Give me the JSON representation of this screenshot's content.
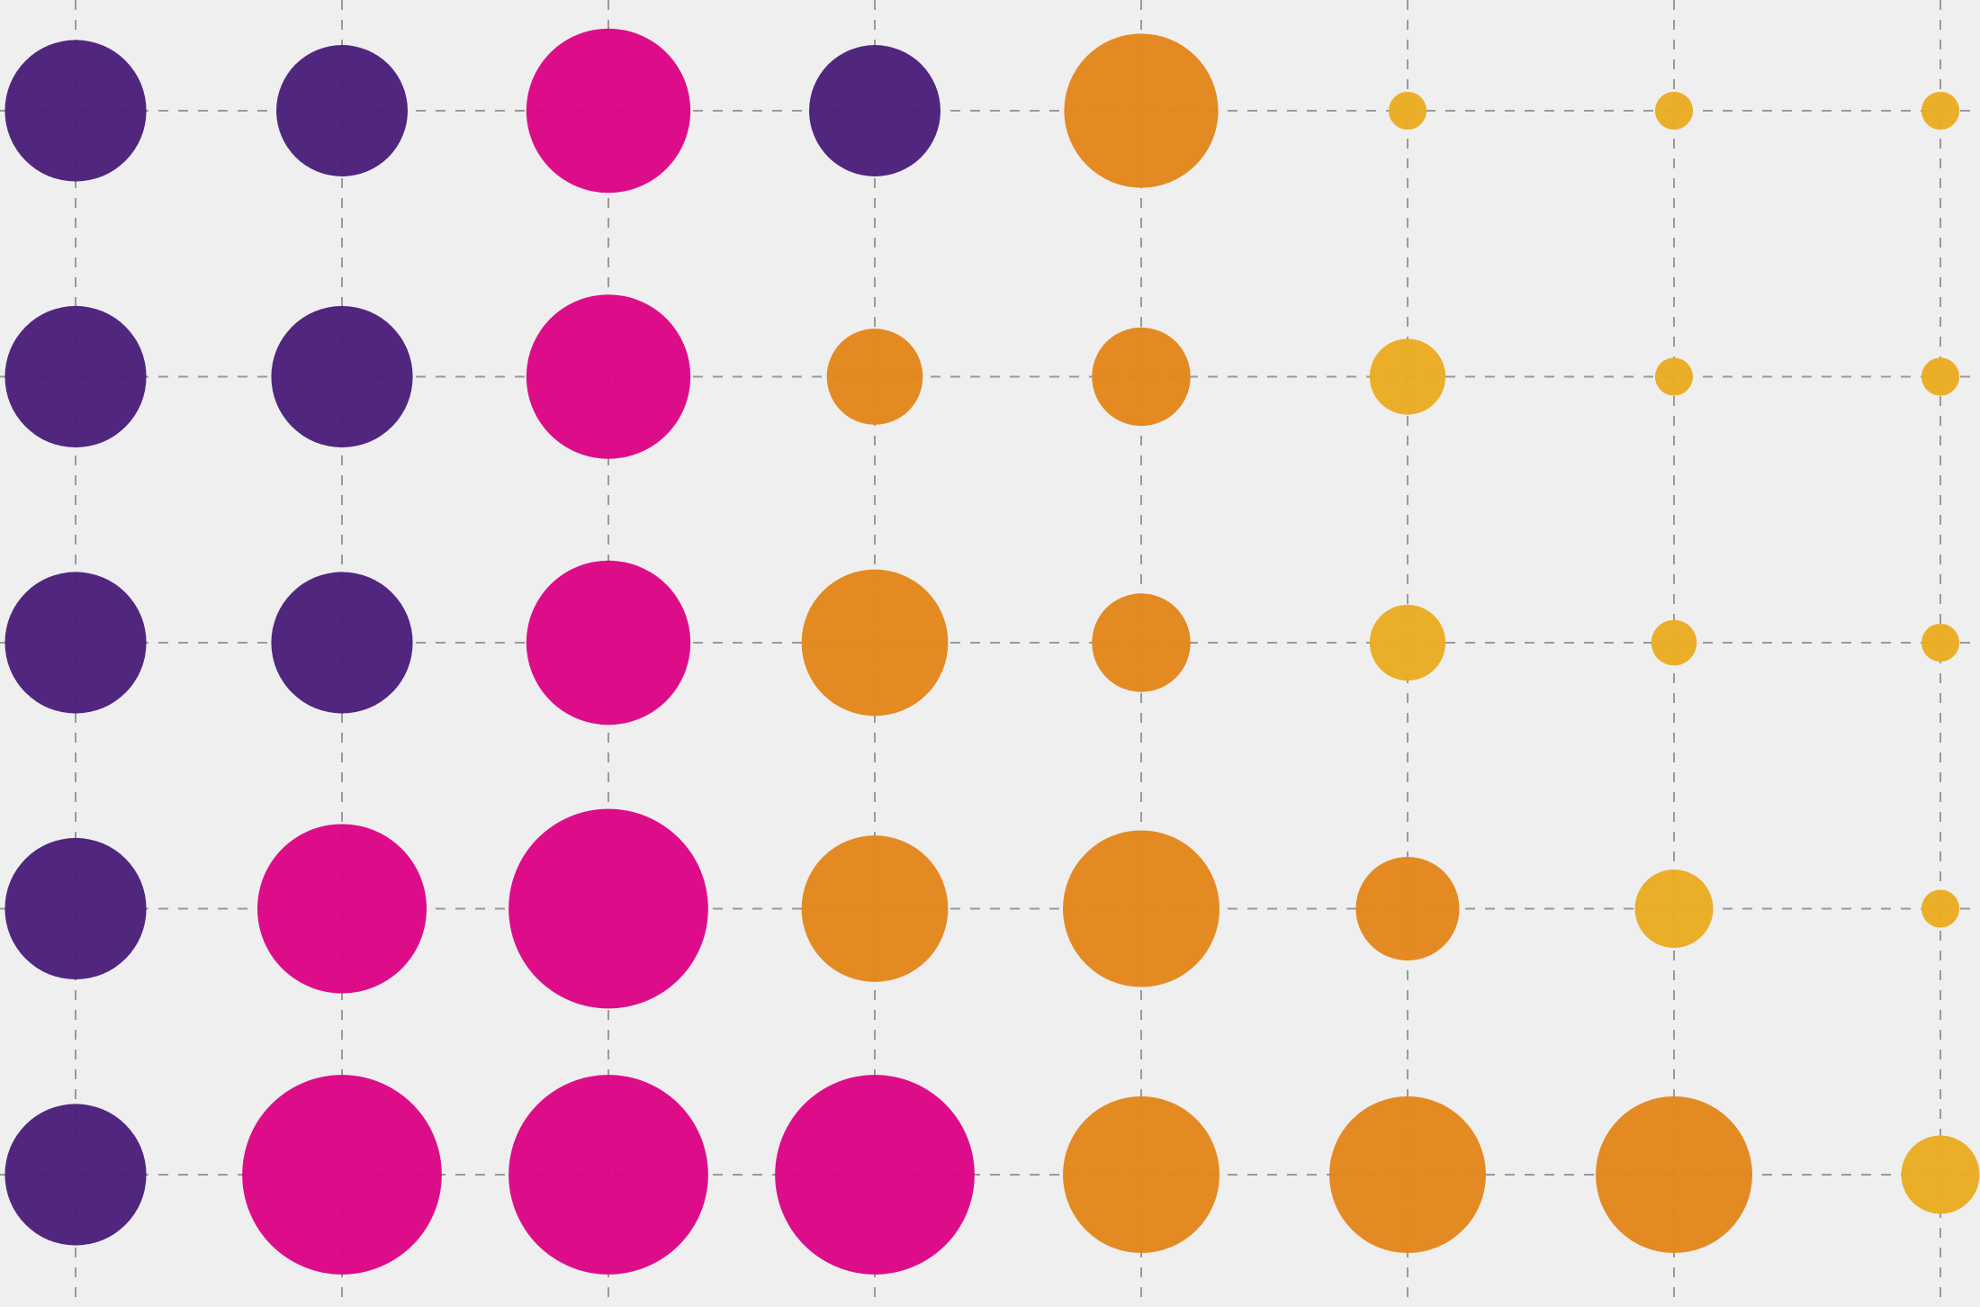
{
  "chart_data": {
    "type": "bubble",
    "grid": true,
    "rows": [
      {
        "sizes": [
          112,
          104,
          130,
          104,
          122,
          30,
          30,
          30
        ],
        "colors": [
          "#4a1f7a",
          "#4a1f7a",
          "#dc0585",
          "#4a1f7a",
          "#e3861c",
          "#e9ab22",
          "#e9ab22",
          "#e9ab22"
        ]
      },
      {
        "sizes": [
          112,
          112,
          130,
          76,
          78,
          60,
          30,
          30
        ],
        "colors": [
          "#4a1f7a",
          "#4a1f7a",
          "#dc0585",
          "#e3861c",
          "#e3861c",
          "#e9ab22",
          "#e9ab22",
          "#e9ab22"
        ]
      },
      {
        "sizes": [
          112,
          112,
          130,
          116,
          78,
          60,
          36,
          30
        ],
        "colors": [
          "#4a1f7a",
          "#4a1f7a",
          "#dc0585",
          "#e3861c",
          "#e3861c",
          "#e9ab22",
          "#e9ab22",
          "#e9ab22"
        ]
      },
      {
        "sizes": [
          112,
          134,
          158,
          116,
          124,
          82,
          62,
          30
        ],
        "colors": [
          "#4a1f7a",
          "#dc0585",
          "#dc0585",
          "#e3861c",
          "#e3861c",
          "#e3861c",
          "#e9ab22",
          "#e9ab22"
        ]
      },
      {
        "sizes": [
          112,
          158,
          158,
          158,
          124,
          124,
          124,
          62
        ],
        "colors": [
          "#4a1f7a",
          "#dc0585",
          "#dc0585",
          "#dc0585",
          "#e3861c",
          "#e3861c",
          "#e3861c",
          "#e9ab22"
        ]
      }
    ]
  }
}
